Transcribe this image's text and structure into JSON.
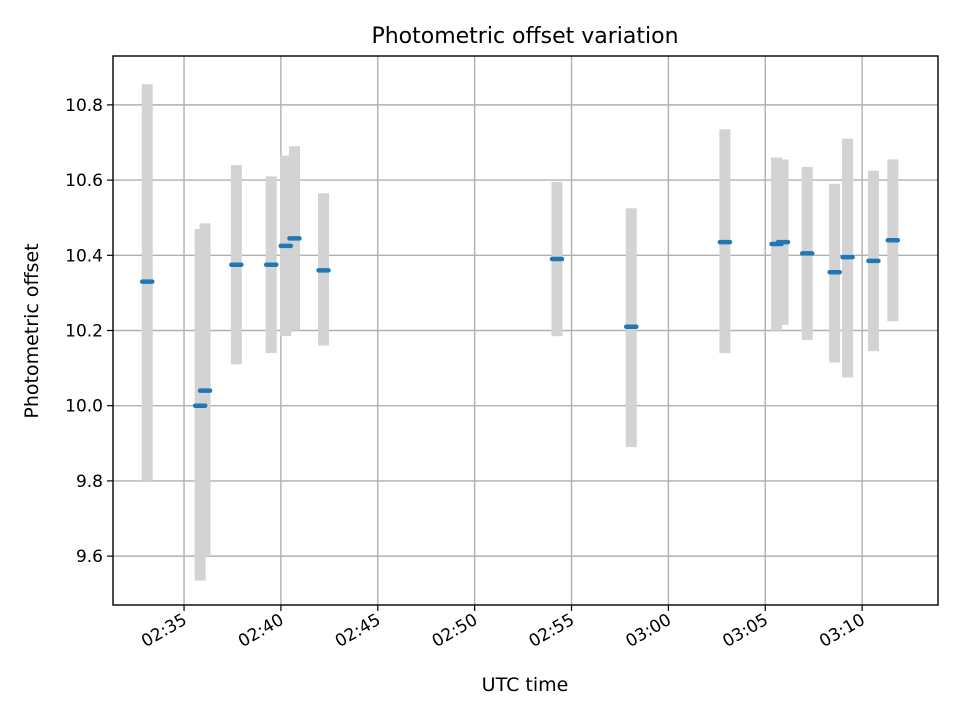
{
  "chart_data": {
    "type": "scatter",
    "title": "Photometric offset variation",
    "xlabel": "UTC time",
    "ylabel": "Photometric offset",
    "xlim": [
      "02:31:20",
      "03:13:55"
    ],
    "ylim": [
      9.47,
      10.93
    ],
    "x_ticks": [
      "02:35",
      "02:40",
      "02:45",
      "02:50",
      "02:55",
      "03:00",
      "03:05",
      "03:10"
    ],
    "y_ticks": [
      "9.6",
      "9.8",
      "10.0",
      "10.2",
      "10.4",
      "10.6",
      "10.8"
    ],
    "grid": true,
    "colors": {
      "point": "#1f77b4",
      "errorbar": "#d3d3d3"
    },
    "points": [
      {
        "x": "02:33:06",
        "y": 10.33,
        "low": 9.8,
        "high": 10.855
      },
      {
        "x": "02:35:50",
        "y": 10.0,
        "low": 9.535,
        "high": 10.47
      },
      {
        "x": "02:36:05",
        "y": 10.04,
        "low": 9.6,
        "high": 10.485
      },
      {
        "x": "02:37:42",
        "y": 10.375,
        "low": 10.11,
        "high": 10.64
      },
      {
        "x": "02:39:30",
        "y": 10.375,
        "low": 10.14,
        "high": 10.61
      },
      {
        "x": "02:40:15",
        "y": 10.425,
        "low": 10.185,
        "high": 10.665
      },
      {
        "x": "02:40:42",
        "y": 10.445,
        "low": 10.2,
        "high": 10.69
      },
      {
        "x": "02:42:12",
        "y": 10.36,
        "low": 10.16,
        "high": 10.565
      },
      {
        "x": "02:54:15",
        "y": 10.39,
        "low": 10.185,
        "high": 10.595
      },
      {
        "x": "02:58:05",
        "y": 10.21,
        "low": 9.89,
        "high": 10.525
      },
      {
        "x": "03:02:55",
        "y": 10.435,
        "low": 10.14,
        "high": 10.735
      },
      {
        "x": "03:05:35",
        "y": 10.43,
        "low": 10.2,
        "high": 10.66
      },
      {
        "x": "03:05:55",
        "y": 10.435,
        "low": 10.215,
        "high": 10.655
      },
      {
        "x": "03:07:10",
        "y": 10.405,
        "low": 10.175,
        "high": 10.635
      },
      {
        "x": "03:08:35",
        "y": 10.355,
        "low": 10.115,
        "high": 10.59
      },
      {
        "x": "03:09:15",
        "y": 10.395,
        "low": 10.075,
        "high": 10.71
      },
      {
        "x": "03:10:35",
        "y": 10.385,
        "low": 10.145,
        "high": 10.625
      },
      {
        "x": "03:11:35",
        "y": 10.44,
        "low": 10.225,
        "high": 10.655
      }
    ]
  }
}
